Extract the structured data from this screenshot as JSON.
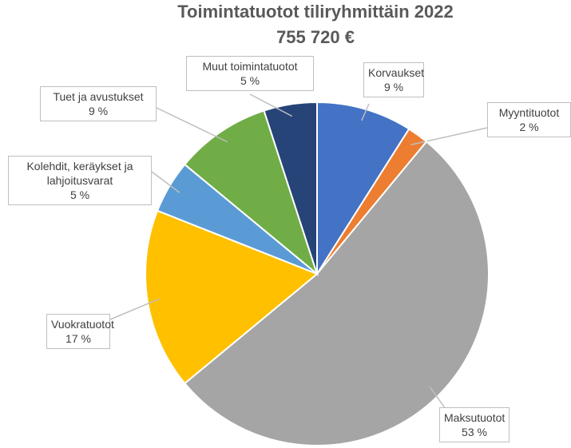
{
  "chart_data": {
    "type": "pie",
    "title": "Toimintatuotot tiliryhmittäin 2022",
    "subtitle": "755 720 €",
    "categories": [
      "Korvaukset",
      "Myyntituotot",
      "Maksutuotot",
      "Vuokratuotot",
      "Kolehdit, keräykset ja lahjoitusvarat",
      "Tuet ja avustukset",
      "Muut toimintatuotot"
    ],
    "values": [
      9,
      2,
      53,
      17,
      5,
      9,
      5
    ],
    "value_labels": [
      "9 %",
      "2 %",
      "53 %",
      "17 %",
      "5 %",
      "9 %",
      "5 %"
    ],
    "colors": [
      "#4472c4",
      "#ed7d31",
      "#a5a5a5",
      "#ffc000",
      "#5b9bd5",
      "#70ad47",
      "#264478"
    ]
  }
}
